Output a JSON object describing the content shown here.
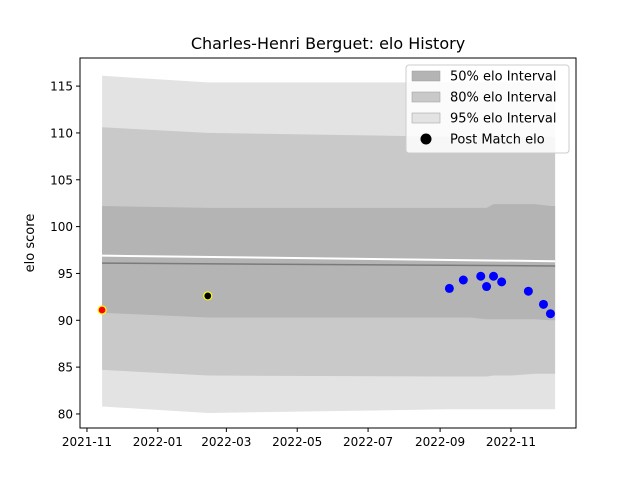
{
  "chart_data": {
    "type": "area",
    "title": "Charles-Henri Berguet: elo History",
    "xlabel": "",
    "ylabel": "elo score",
    "xlim": [
      "2021-10-26",
      "2022-12-27"
    ],
    "ylim": [
      78.5,
      118.0
    ],
    "grid": false,
    "legend_position": "top-right",
    "x_ticks": [
      {
        "date": "2021-11-01",
        "label": "2021-11"
      },
      {
        "date": "2022-01-01",
        "label": "2022-01"
      },
      {
        "date": "2022-03-01",
        "label": "2022-03"
      },
      {
        "date": "2022-05-01",
        "label": "2022-05"
      },
      {
        "date": "2022-07-01",
        "label": "2022-07"
      },
      {
        "date": "2022-09-01",
        "label": "2022-09"
      },
      {
        "date": "2022-11-01",
        "label": "2022-11"
      }
    ],
    "y_ticks": [
      80,
      85,
      90,
      95,
      100,
      105,
      110,
      115
    ],
    "band_x": [
      "2021-11-14",
      "2022-02-13",
      "2022-09-09",
      "2022-09-27",
      "2022-10-11",
      "2022-10-17",
      "2022-11-01",
      "2022-11-22",
      "2022-12-05",
      "2022-12-09"
    ],
    "bands": [
      {
        "name": "95% elo Interval",
        "color": "#e3e3e3",
        "upper": [
          116.1,
          115.4,
          115.4,
          115.4,
          115.4,
          115.4,
          115.4,
          115.4,
          115.4,
          115.4
        ],
        "lower": [
          80.8,
          80.1,
          80.5,
          80.5,
          80.5,
          80.5,
          80.5,
          80.5,
          80.5,
          80.5
        ]
      },
      {
        "name": "80% elo Interval",
        "color": "#c9c9c9",
        "upper": [
          110.6,
          110.0,
          109.6,
          109.6,
          109.6,
          109.6,
          109.6,
          109.6,
          109.6,
          109.6
        ],
        "lower": [
          84.7,
          84.1,
          84.0,
          84.0,
          84.0,
          84.1,
          84.1,
          84.3,
          84.3,
          84.3
        ]
      },
      {
        "name": "50% elo Interval",
        "color": "#b4b4b4",
        "upper": [
          102.2,
          102.0,
          102.0,
          102.0,
          102.0,
          102.4,
          102.4,
          102.4,
          102.2,
          102.2
        ],
        "lower": [
          90.8,
          90.3,
          90.3,
          90.3,
          90.1,
          90.1,
          90.1,
          90.1,
          90.0,
          90.0
        ]
      }
    ],
    "white_line": {
      "x": [
        "2021-11-14",
        "2022-12-09"
      ],
      "y": [
        96.9,
        96.3
      ]
    },
    "mean_line": {
      "x": [
        "2021-11-14",
        "2022-12-09"
      ],
      "y": [
        96.1,
        95.8
      ]
    },
    "special_points": [
      {
        "date": "2021-11-14",
        "value": 91.1,
        "fill": "#ff0000",
        "edge": "#ffff00"
      },
      {
        "date": "2022-02-13",
        "value": 92.6,
        "fill": "#000000",
        "edge": "#ffff00"
      }
    ],
    "series": [
      {
        "name": "Post Match elo",
        "color": "#0000ff",
        "points": [
          {
            "date": "2022-09-09",
            "value": 93.4
          },
          {
            "date": "2022-09-21",
            "value": 94.3
          },
          {
            "date": "2022-10-06",
            "value": 94.7
          },
          {
            "date": "2022-10-11",
            "value": 93.6
          },
          {
            "date": "2022-10-17",
            "value": 94.7
          },
          {
            "date": "2022-10-24",
            "value": 94.1
          },
          {
            "date": "2022-11-16",
            "value": 93.1
          },
          {
            "date": "2022-11-29",
            "value": 91.7
          },
          {
            "date": "2022-12-05",
            "value": 90.7
          }
        ]
      }
    ],
    "legend": [
      {
        "label": "50% elo Interval",
        "color": "#b4b4b4",
        "kind": "patch"
      },
      {
        "label": "80% elo Interval",
        "color": "#c9c9c9",
        "kind": "patch"
      },
      {
        "label": "95% elo Interval",
        "color": "#e3e3e3",
        "kind": "patch"
      },
      {
        "label": "Post Match elo",
        "color": "#000000",
        "kind": "marker"
      }
    ]
  }
}
